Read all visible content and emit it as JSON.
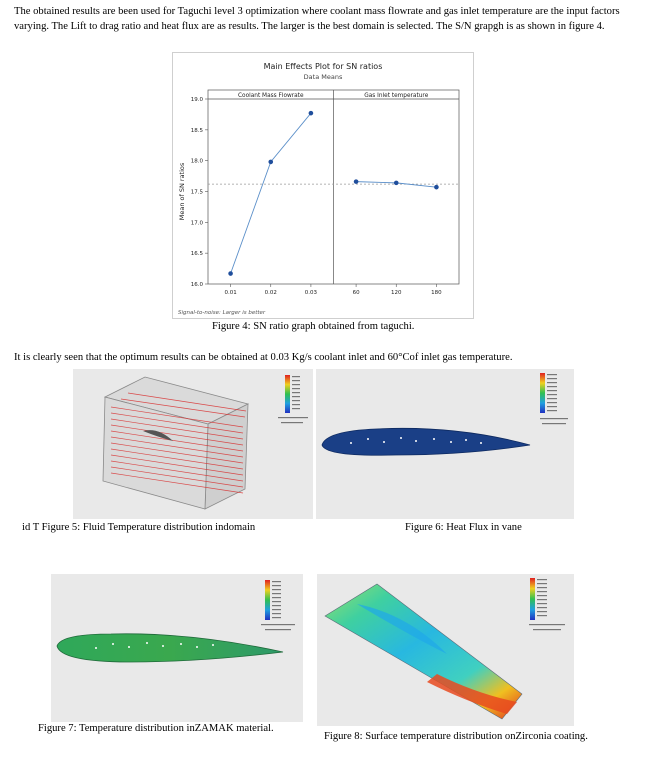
{
  "paragraph1": "The obtained results are been used for Taguchi level 3 optimization where coolant mass flowrate and gas inlet temperature are the input factors varying. The Lift to drag ratio and heat flux are as results. The larger is the best domain is selected. The S/N grapgh is as shown in figure 4.",
  "fig4_caption": "Figure 4: SN ratio graph obtained from taguchi.",
  "paragraph2": "It is clearly seen that the optimum results can be obtained at 0.03 Kg/s coolant inlet and 60°Cof inlet gas temperature.",
  "fig5_caption": "id T Figure 5: Fluid Temperature distribution indomain",
  "fig6_caption": "Figure 6: Heat Flux in vane",
  "fig7_caption": "Figure 7: Temperature distribution inZAMAK material.",
  "fig8_caption": "Figure 8: Surface temperature distribution onZirconia coating.",
  "chart_data": {
    "type": "line",
    "title": "Main Effects Plot for SN ratios",
    "subtitle": "Data Means",
    "ylabel": "Mean of SN ratios",
    "footnote": "Signal-to-noise: Larger is better",
    "ylim": [
      16.0,
      19.0
    ],
    "yticks": [
      "16.0",
      "16.5",
      "17.0",
      "17.5",
      "18.0",
      "18.5",
      "19.0"
    ],
    "mean_line": 17.62,
    "panels": [
      {
        "name": "Coolant Mass Flowrate",
        "categories": [
          "0.01",
          "0.02",
          "0.03"
        ],
        "values": [
          16.17,
          17.98,
          18.77
        ]
      },
      {
        "name": "Gas Inlet temperature",
        "categories": [
          "60",
          "120",
          "180"
        ],
        "values": [
          17.66,
          17.64,
          17.57
        ]
      }
    ],
    "grid": false,
    "colors": {
      "line": "#5b8fc9",
      "marker": "#1f4e9c",
      "mean": "#9a9a9a"
    }
  }
}
